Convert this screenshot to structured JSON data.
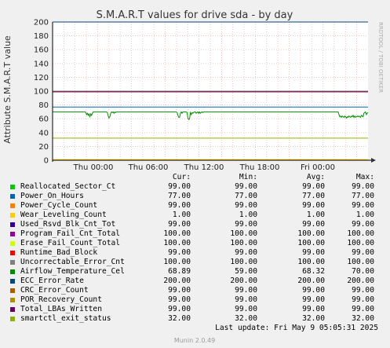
{
  "chart_data": {
    "type": "line",
    "title": "S.M.A.R.T values for drive sda - by day",
    "ylabel": "Attribute S.M.A.R.T value",
    "ylim": [
      0,
      200
    ],
    "y_ticks": [
      "0",
      "20",
      "40",
      "60",
      "80",
      "100",
      "120",
      "140",
      "160",
      "180",
      "200"
    ],
    "x_ticks": [
      "Thu 00:00",
      "Thu 06:00",
      "Thu 12:00",
      "Thu 18:00",
      "Fri 00:00"
    ],
    "grid": true,
    "watermark": "RRDTOOL / TOBI OETIKER",
    "series": [
      {
        "name": "Reallocated_Sector_Ct",
        "color": "#00cc00",
        "cur": "99.00",
        "min": "99.00",
        "avg": "99.00",
        "max": "99.00",
        "flat": 99
      },
      {
        "name": "Power_On_Hours",
        "color": "#0066b3",
        "cur": "77.00",
        "min": "77.00",
        "avg": "77.00",
        "max": "77.00",
        "flat": 77
      },
      {
        "name": "Power_Cycle_Count",
        "color": "#ff8000",
        "cur": "99.00",
        "min": "99.00",
        "avg": "99.00",
        "max": "99.00",
        "flat": 99
      },
      {
        "name": "Wear_Leveling_Count",
        "color": "#ffcc00",
        "cur": "1.00",
        "min": "1.00",
        "avg": "1.00",
        "max": "1.00",
        "flat": 1
      },
      {
        "name": "Used_Rsvd_Blk_Cnt_Tot",
        "color": "#330099",
        "cur": "99.00",
        "min": "99.00",
        "avg": "99.00",
        "max": "99.00",
        "flat": 99
      },
      {
        "name": "Program_Fail_Cnt_Total",
        "color": "#990099",
        "cur": "100.00",
        "min": "100.00",
        "avg": "100.00",
        "max": "100.00",
        "flat": 100
      },
      {
        "name": "Erase_Fail_Count_Total",
        "color": "#ccff00",
        "cur": "100.00",
        "min": "100.00",
        "avg": "100.00",
        "max": "100.00",
        "flat": 100
      },
      {
        "name": "Runtime_Bad_Block",
        "color": "#ff0000",
        "cur": "99.00",
        "min": "99.00",
        "avg": "99.00",
        "max": "99.00",
        "flat": 99
      },
      {
        "name": "Uncorrectable_Error_Cnt",
        "color": "#808080",
        "cur": "100.00",
        "min": "100.00",
        "avg": "100.00",
        "max": "100.00",
        "flat": 100
      },
      {
        "name": "Airflow_Temperature_Cel",
        "color": "#008f00",
        "cur": "68.89",
        "min": "59.00",
        "avg": "68.32",
        "max": "70.00",
        "values": [
          70,
          70,
          70,
          70,
          70,
          70,
          70,
          70,
          70,
          70,
          70,
          70,
          70,
          70,
          70,
          70,
          70,
          70,
          70,
          70,
          70,
          70,
          70,
          70,
          70,
          70,
          70,
          70,
          70,
          70,
          70,
          70,
          70,
          70,
          70,
          70,
          70,
          70,
          70,
          70,
          69,
          66,
          68,
          65,
          67,
          63,
          67,
          65,
          68,
          70,
          70,
          70,
          70,
          70,
          70,
          70,
          70,
          70,
          70,
          70,
          70,
          70,
          70,
          70,
          70,
          70,
          69,
          64,
          61,
          63,
          68,
          70,
          69,
          70,
          68,
          70,
          69,
          70,
          70,
          70,
          70,
          70,
          70,
          70,
          70,
          70,
          70,
          70,
          70,
          70,
          70,
          70,
          70,
          70,
          70,
          70,
          70,
          70,
          70,
          70,
          70,
          70,
          70,
          70,
          70,
          70,
          70,
          70,
          70,
          70,
          70,
          70,
          70,
          70,
          70,
          70,
          70,
          70,
          70,
          70,
          70,
          70,
          70,
          70,
          70,
          70,
          70,
          70,
          70,
          70,
          70,
          70,
          70,
          70,
          70,
          70,
          70,
          70,
          70,
          70,
          70,
          70,
          70,
          70,
          70,
          70,
          70,
          70,
          70,
          70,
          69,
          65,
          62,
          62,
          68,
          70,
          68,
          70,
          70,
          70,
          70,
          70,
          69,
          61,
          59,
          60,
          69,
          66,
          69,
          68,
          69,
          70,
          70,
          68,
          69,
          70,
          68,
          70,
          68,
          69,
          70,
          69,
          70,
          70,
          70,
          70,
          70,
          70,
          70,
          70,
          70,
          70,
          70,
          70,
          70,
          70,
          70,
          70,
          70,
          70,
          70,
          70,
          70,
          70,
          70,
          70,
          70,
          70,
          70,
          70,
          70,
          70,
          70,
          70,
          70,
          70,
          70,
          70,
          70,
          70,
          70,
          70,
          70,
          70,
          70,
          70,
          70,
          70,
          70,
          70,
          70,
          70,
          70,
          70,
          70,
          70,
          70,
          70,
          70,
          70,
          70,
          70,
          70,
          70,
          70,
          70,
          70,
          70,
          70,
          70,
          70,
          70,
          70,
          70,
          70,
          70,
          70,
          70,
          70,
          70,
          70,
          70,
          70,
          70,
          70,
          70,
          70,
          70,
          70,
          70,
          70,
          70,
          70,
          70,
          70,
          70,
          70,
          70,
          70,
          70,
          70,
          70,
          70,
          70,
          70,
          70,
          70,
          70,
          70,
          70,
          70,
          70,
          70,
          70,
          70,
          70,
          70,
          70,
          70,
          70,
          70,
          70,
          70,
          70,
          70,
          70,
          70,
          70,
          70,
          70,
          70,
          70,
          70,
          70,
          70,
          70,
          70,
          70,
          70,
          70,
          70,
          70,
          70,
          70,
          70,
          70,
          70,
          70,
          70,
          70,
          70,
          70,
          70,
          70,
          70,
          70,
          70,
          70,
          70,
          70,
          70,
          70,
          70,
          70,
          70,
          66,
          63,
          64,
          62,
          64,
          63,
          62,
          64,
          63,
          61,
          63,
          62,
          64,
          63,
          62,
          64,
          63,
          65,
          62,
          64,
          62,
          63,
          64,
          63,
          64,
          63,
          62,
          65,
          64,
          63,
          68,
          69,
          70,
          66,
          68,
          69
        ]
      },
      {
        "name": "ECC_Error_Rate",
        "color": "#00487d",
        "cur": "200.00",
        "min": "200.00",
        "avg": "200.00",
        "max": "200.00",
        "flat": 200
      },
      {
        "name": "CRC_Error_Count",
        "color": "#b35a00",
        "cur": "99.00",
        "min": "99.00",
        "avg": "99.00",
        "max": "99.00",
        "flat": 99
      },
      {
        "name": "POR_Recovery_Count",
        "color": "#b38f00",
        "cur": "99.00",
        "min": "99.00",
        "avg": "99.00",
        "max": "99.00",
        "flat": 99
      },
      {
        "name": "Total_LBAs_Written",
        "color": "#6b006b",
        "cur": "99.00",
        "min": "99.00",
        "avg": "99.00",
        "max": "99.00",
        "flat": 99
      },
      {
        "name": "smartctl_exit_status",
        "color": "#8fb300",
        "cur": "32.00",
        "min": "32.00",
        "avg": "32.00",
        "max": "32.00",
        "flat": 32
      }
    ]
  },
  "legend": {
    "cur": "Cur:",
    "min": "Min:",
    "avg": "Avg:",
    "max": "Max:"
  },
  "last_update": "Last update: Fri May  9 05:05:31 2025",
  "footer": "Munin 2.0.49"
}
